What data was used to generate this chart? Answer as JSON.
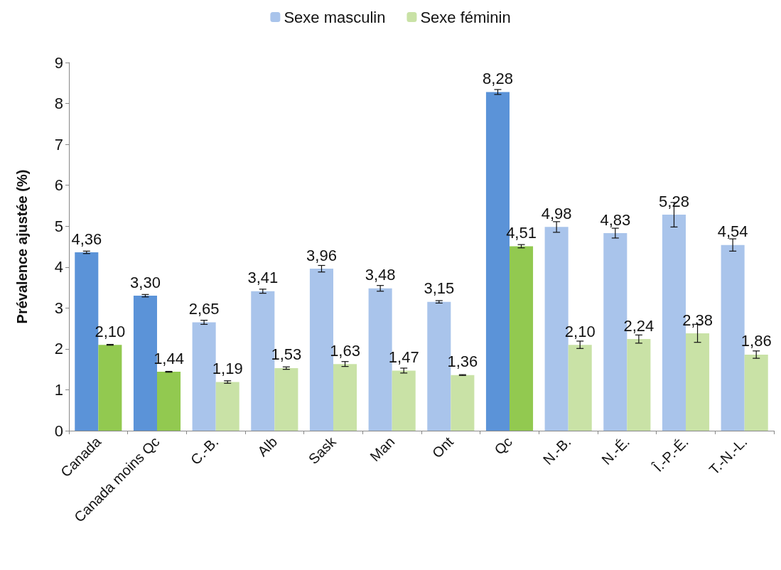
{
  "chart_data": {
    "type": "bar",
    "ylabel": "Prévalence ajustée (%)",
    "categories": [
      "Canada",
      "Canada moins Qc",
      "C.-B.",
      "Alb",
      "Sask",
      "Man",
      "Ont",
      "Qc",
      "N.-B.",
      "N.-É.",
      "Î.-P.-É.",
      "T.-N.-L."
    ],
    "series": [
      {
        "name": "Sexe masculin",
        "color": "#a9c4eb",
        "colors": [
          "#5b93d8",
          "#5b93d8",
          "#a9c4eb",
          "#a9c4eb",
          "#a9c4eb",
          "#a9c4eb",
          "#a9c4eb",
          "#5b93d8",
          "#a9c4eb",
          "#a9c4eb",
          "#a9c4eb",
          "#a9c4eb"
        ],
        "values": [
          4.36,
          3.3,
          2.65,
          3.41,
          3.96,
          3.48,
          3.15,
          8.28,
          4.98,
          4.83,
          5.28,
          4.54
        ],
        "value_labels": [
          "4,36",
          "3,30",
          "2,65",
          "3,41",
          "3,96",
          "3,48",
          "3,15",
          "8,28",
          "4,98",
          "4,83",
          "5,28",
          "4,54"
        ],
        "errors": [
          0.03,
          0.03,
          0.05,
          0.05,
          0.08,
          0.07,
          0.03,
          0.06,
          0.13,
          0.12,
          0.3,
          0.15
        ]
      },
      {
        "name": "Sexe féminin",
        "color": "#c9e2a6",
        "colors": [
          "#92c950",
          "#92c950",
          "#c9e2a6",
          "#c9e2a6",
          "#c9e2a6",
          "#c9e2a6",
          "#c9e2a6",
          "#92c950",
          "#c9e2a6",
          "#c9e2a6",
          "#c9e2a6",
          "#c9e2a6"
        ],
        "values": [
          2.1,
          1.44,
          1.19,
          1.53,
          1.63,
          1.47,
          1.36,
          4.51,
          2.1,
          2.24,
          2.38,
          1.86
        ],
        "value_labels": [
          "2,10",
          "1,44",
          "1,19",
          "1,53",
          "1,63",
          "1,47",
          "1,36",
          "4,51",
          "2,10",
          "2,24",
          "2,38",
          "1,86"
        ],
        "errors": [
          0.01,
          0.01,
          0.03,
          0.03,
          0.06,
          0.06,
          0.01,
          0.04,
          0.09,
          0.1,
          0.22,
          0.09
        ]
      }
    ],
    "ylim": [
      0,
      9
    ],
    "yticks": [
      0,
      1,
      2,
      3,
      4,
      5,
      6,
      7,
      8,
      9
    ],
    "grid": false,
    "legend": "top"
  }
}
